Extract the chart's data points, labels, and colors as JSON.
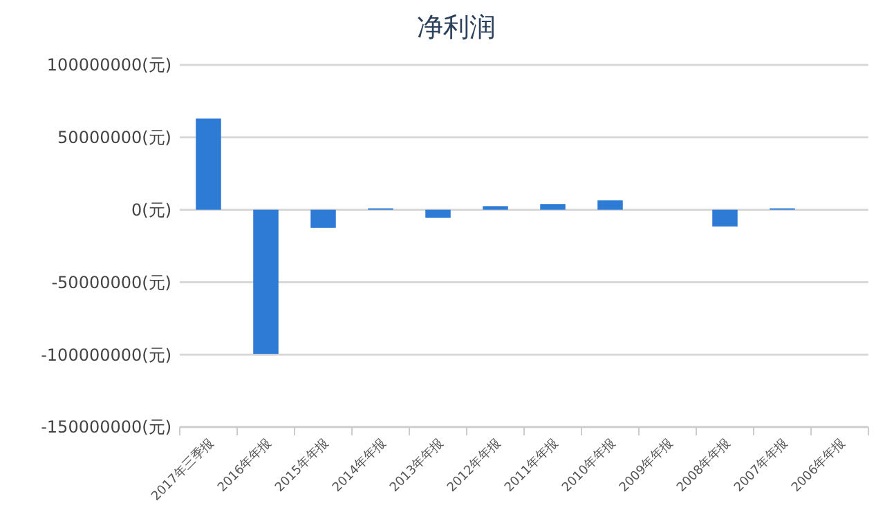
{
  "chart_data": {
    "type": "bar",
    "title": "净利润",
    "categories": [
      "2017年三季报",
      "2016年年报",
      "2015年年报",
      "2014年年报",
      "2013年年报",
      "2012年年报",
      "2011年年报",
      "2010年年报",
      "2009年年报",
      "2008年年报",
      "2007年年报",
      "2006年年报"
    ],
    "values": [
      63000000,
      -99500000,
      -12500000,
      1000000,
      -5500000,
      2500000,
      4000000,
      6500000,
      0,
      -11500000,
      1000000,
      0
    ],
    "color": "#2e7bd6",
    "ylim": [
      -150000000,
      100000000
    ],
    "yticks": [
      {
        "value": -150000000,
        "label": "-150000000(元)"
      },
      {
        "value": -100000000,
        "label": "-100000000(元)"
      },
      {
        "value": -50000000,
        "label": "-50000000(元)"
      },
      {
        "value": 0,
        "label": "0(元)"
      },
      {
        "value": 50000000,
        "label": "50000000(元)"
      },
      {
        "value": 100000000,
        "label": "100000000(元)"
      }
    ],
    "grid": "y"
  }
}
